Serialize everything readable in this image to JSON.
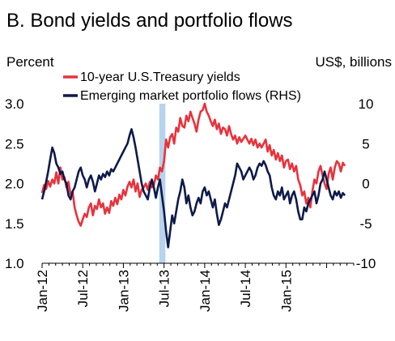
{
  "chart_data": {
    "type": "line",
    "title": "B. Bond yields and portfolio flows",
    "ylabel_left": "Percent",
    "ylabel_right": "US$, billions",
    "x_tick_labels": [
      "Jan-12",
      "Jul-12",
      "Jan-13",
      "Jul-13",
      "Jan-14",
      "Jul-14",
      "Jan-15"
    ],
    "y_left": {
      "range": [
        1.0,
        3.0
      ],
      "ticks": [
        "1.0",
        "1.5",
        "2.0",
        "2.5",
        "3.0"
      ]
    },
    "y_right": {
      "range": [
        -10,
        10
      ],
      "ticks": [
        "-10",
        "-5",
        "0",
        "5",
        "10"
      ]
    },
    "x_range": [
      0,
      46
    ],
    "shaded_period": [
      17.3,
      18.2
    ],
    "grid": false,
    "legend_placement": "top",
    "colors": {
      "yields": "#e8323c",
      "flows": "#0d1a4a",
      "shade": "#b7d3ee"
    },
    "series": [
      {
        "name": "10-year U.S.Treasury yields",
        "axis": "left",
        "points": [
          [
            0,
            1.88
          ],
          [
            0.3,
            1.98
          ],
          [
            0.6,
            1.93
          ],
          [
            0.9,
            2.03
          ],
          [
            1.2,
            1.96
          ],
          [
            1.5,
            2.05
          ],
          [
            1.8,
            2.0
          ],
          [
            2.1,
            2.14
          ],
          [
            2.4,
            2.0
          ],
          [
            2.7,
            2.2
          ],
          [
            3,
            2.05
          ],
          [
            3.3,
            2.08
          ],
          [
            3.6,
            1.95
          ],
          [
            3.9,
            2.02
          ],
          [
            4.2,
            1.86
          ],
          [
            4.5,
            1.9
          ],
          [
            4.8,
            1.7
          ],
          [
            5.1,
            1.6
          ],
          [
            5.4,
            1.52
          ],
          [
            5.7,
            1.47
          ],
          [
            6,
            1.55
          ],
          [
            6.3,
            1.62
          ],
          [
            6.6,
            1.58
          ],
          [
            6.9,
            1.7
          ],
          [
            7.2,
            1.75
          ],
          [
            7.5,
            1.6
          ],
          [
            7.8,
            1.72
          ],
          [
            8.1,
            1.68
          ],
          [
            8.4,
            1.8
          ],
          [
            8.7,
            1.7
          ],
          [
            9,
            1.75
          ],
          [
            9.3,
            1.62
          ],
          [
            9.6,
            1.7
          ],
          [
            9.9,
            1.63
          ],
          [
            10.2,
            1.78
          ],
          [
            10.5,
            1.72
          ],
          [
            10.8,
            1.82
          ],
          [
            11.1,
            1.74
          ],
          [
            11.4,
            1.86
          ],
          [
            11.7,
            1.8
          ],
          [
            12,
            1.92
          ],
          [
            12.3,
            1.85
          ],
          [
            12.6,
            1.96
          ],
          [
            12.9,
            2.02
          ],
          [
            13.2,
            1.95
          ],
          [
            13.5,
            2.05
          ],
          [
            13.8,
            1.9
          ],
          [
            14.1,
            2.0
          ],
          [
            14.4,
            1.83
          ],
          [
            14.7,
            1.92
          ],
          [
            15,
            1.95
          ],
          [
            15.3,
            2.0
          ],
          [
            15.6,
            1.92
          ],
          [
            15.9,
            2.02
          ],
          [
            16.2,
            1.95
          ],
          [
            16.5,
            1.98
          ],
          [
            16.8,
            2.1
          ],
          [
            17.1,
            2.05
          ],
          [
            17.4,
            2.2
          ],
          [
            17.7,
            2.15
          ],
          [
            18,
            2.28
          ],
          [
            18.3,
            2.55
          ],
          [
            18.6,
            2.45
          ],
          [
            18.9,
            2.58
          ],
          [
            19.2,
            2.62
          ],
          [
            19.5,
            2.5
          ],
          [
            19.8,
            2.7
          ],
          [
            20.1,
            2.65
          ],
          [
            20.4,
            2.82
          ],
          [
            20.7,
            2.72
          ],
          [
            21,
            2.7
          ],
          [
            21.3,
            2.85
          ],
          [
            21.6,
            2.78
          ],
          [
            21.9,
            2.9
          ],
          [
            22.2,
            2.82
          ],
          [
            22.5,
            2.75
          ],
          [
            22.8,
            2.65
          ],
          [
            23.1,
            2.8
          ],
          [
            23.4,
            2.9
          ],
          [
            23.7,
            2.92
          ],
          [
            24,
            3.0
          ],
          [
            24.3,
            2.9
          ],
          [
            24.6,
            2.85
          ],
          [
            24.9,
            2.78
          ],
          [
            25.2,
            2.72
          ],
          [
            25.5,
            2.8
          ],
          [
            25.8,
            2.68
          ],
          [
            26.1,
            2.75
          ],
          [
            26.4,
            2.62
          ],
          [
            26.7,
            2.7
          ],
          [
            27,
            2.68
          ],
          [
            27.3,
            2.6
          ],
          [
            27.6,
            2.72
          ],
          [
            27.9,
            2.62
          ],
          [
            28.2,
            2.55
          ],
          [
            28.5,
            2.6
          ],
          [
            28.8,
            2.5
          ],
          [
            29.1,
            2.58
          ],
          [
            29.4,
            2.52
          ],
          [
            29.7,
            2.56
          ],
          [
            30,
            2.6
          ],
          [
            30.3,
            2.55
          ],
          [
            30.6,
            2.5
          ],
          [
            30.9,
            2.56
          ],
          [
            31.2,
            2.48
          ],
          [
            31.5,
            2.55
          ],
          [
            31.8,
            2.45
          ],
          [
            32.1,
            2.5
          ],
          [
            32.4,
            2.45
          ],
          [
            32.7,
            2.5
          ],
          [
            33,
            2.55
          ],
          [
            33.3,
            2.4
          ],
          [
            33.6,
            2.48
          ],
          [
            33.9,
            2.35
          ],
          [
            34.2,
            2.42
          ],
          [
            34.5,
            2.3
          ],
          [
            34.8,
            2.38
          ],
          [
            35.1,
            2.28
          ],
          [
            35.4,
            2.35
          ],
          [
            35.7,
            2.2
          ],
          [
            36,
            2.28
          ],
          [
            36.3,
            2.3
          ],
          [
            36.6,
            2.18
          ],
          [
            36.9,
            2.25
          ],
          [
            37.2,
            2.15
          ],
          [
            37.5,
            2.22
          ],
          [
            37.8,
            2.05
          ],
          [
            38.1,
            1.98
          ],
          [
            38.4,
            1.85
          ],
          [
            38.7,
            1.9
          ],
          [
            39,
            1.75
          ],
          [
            39.3,
            1.82
          ],
          [
            39.6,
            1.7
          ],
          [
            39.9,
            1.9
          ],
          [
            40.2,
            2.05
          ],
          [
            40.5,
            2.0
          ],
          [
            40.8,
            2.15
          ],
          [
            41.1,
            2.22
          ],
          [
            41.4,
            2.1
          ],
          [
            41.7,
            2.0
          ],
          [
            42,
            1.93
          ],
          [
            42.3,
            2.12
          ],
          [
            42.6,
            2.2
          ],
          [
            42.9,
            2.05
          ],
          [
            43.2,
            2.2
          ],
          [
            43.5,
            2.28
          ],
          [
            43.8,
            2.25
          ],
          [
            44.1,
            2.15
          ],
          [
            44.4,
            2.26
          ],
          [
            44.7,
            2.22
          ]
        ]
      },
      {
        "name": "Emerging market portfolio flows (RHS)",
        "axis": "right",
        "points": [
          [
            0,
            -2.0
          ],
          [
            0.3,
            -1.0
          ],
          [
            0.6,
            0.2
          ],
          [
            0.9,
            1.5
          ],
          [
            1.2,
            3.0
          ],
          [
            1.5,
            4.5
          ],
          [
            1.8,
            3.8
          ],
          [
            2.1,
            2.5
          ],
          [
            2.4,
            2.0
          ],
          [
            2.7,
            1.2
          ],
          [
            3,
            1.5
          ],
          [
            3.3,
            0.5
          ],
          [
            3.6,
            0.0
          ],
          [
            3.9,
            -1.5
          ],
          [
            4.2,
            -2.0
          ],
          [
            4.5,
            -1.0
          ],
          [
            4.8,
            -0.5
          ],
          [
            5.1,
            0.5
          ],
          [
            5.4,
            1.5
          ],
          [
            5.7,
            2.0
          ],
          [
            6,
            1.0
          ],
          [
            6.3,
            0.5
          ],
          [
            6.6,
            -0.5
          ],
          [
            6.9,
            0.5
          ],
          [
            7.2,
            1.0
          ],
          [
            7.5,
            0.2
          ],
          [
            7.8,
            -1.0
          ],
          [
            8.1,
            0.0
          ],
          [
            8.4,
            1.0
          ],
          [
            8.7,
            0.5
          ],
          [
            9,
            1.2
          ],
          [
            9.3,
            0.8
          ],
          [
            9.6,
            1.5
          ],
          [
            9.9,
            1.0
          ],
          [
            10.2,
            1.8
          ],
          [
            10.5,
            1.5
          ],
          [
            10.8,
            2.0
          ],
          [
            11.1,
            2.5
          ],
          [
            11.4,
            3.0
          ],
          [
            11.7,
            3.5
          ],
          [
            12,
            4.0
          ],
          [
            12.3,
            4.5
          ],
          [
            12.6,
            5.0
          ],
          [
            12.9,
            6.0
          ],
          [
            13.2,
            6.8
          ],
          [
            13.5,
            5.8
          ],
          [
            13.8,
            4.5
          ],
          [
            14.1,
            3.0
          ],
          [
            14.4,
            1.5
          ],
          [
            14.7,
            0.0
          ],
          [
            15,
            -1.0
          ],
          [
            15.3,
            -1.5
          ],
          [
            15.6,
            -2.0
          ],
          [
            15.9,
            -0.5
          ],
          [
            16.2,
            0.5
          ],
          [
            16.5,
            -0.5
          ],
          [
            16.8,
            -1.8
          ],
          [
            17.1,
            -0.5
          ],
          [
            17.4,
            0.5
          ],
          [
            17.7,
            -1.5
          ],
          [
            18,
            -3.5
          ],
          [
            18.3,
            -6.0
          ],
          [
            18.6,
            -8.0
          ],
          [
            18.9,
            -6.0
          ],
          [
            19.2,
            -4.0
          ],
          [
            19.5,
            -5.0
          ],
          [
            19.8,
            -3.5
          ],
          [
            20.1,
            -2.0
          ],
          [
            20.4,
            -1.0
          ],
          [
            20.7,
            0.5
          ],
          [
            21,
            -0.5
          ],
          [
            21.3,
            -2.5
          ],
          [
            21.6,
            -1.5
          ],
          [
            21.9,
            -3.0
          ],
          [
            22.2,
            -4.0
          ],
          [
            22.5,
            -3.5
          ],
          [
            22.8,
            -2.5
          ],
          [
            23.1,
            -1.8
          ],
          [
            23.4,
            -2.5
          ],
          [
            23.7,
            -1.0
          ],
          [
            24,
            -0.5
          ],
          [
            24.3,
            -1.5
          ],
          [
            24.6,
            -1.0
          ],
          [
            24.9,
            -2.0
          ],
          [
            25.2,
            -3.0
          ],
          [
            25.5,
            -2.0
          ],
          [
            25.8,
            -3.8
          ],
          [
            26.1,
            -5.2
          ],
          [
            26.4,
            -4.5
          ],
          [
            26.7,
            -3.5
          ],
          [
            27,
            -2.5
          ],
          [
            27.3,
            -3.0
          ],
          [
            27.6,
            -2.0
          ],
          [
            27.9,
            -1.0
          ],
          [
            28.2,
            0.0
          ],
          [
            28.5,
            1.0
          ],
          [
            28.8,
            2.5
          ],
          [
            29.1,
            2.0
          ],
          [
            29.4,
            1.5
          ],
          [
            29.7,
            0.5
          ],
          [
            30,
            1.0
          ],
          [
            30.3,
            1.5
          ],
          [
            30.6,
            2.0
          ],
          [
            30.9,
            1.5
          ],
          [
            31.2,
            0.5
          ],
          [
            31.5,
            1.0
          ],
          [
            31.8,
            2.0
          ],
          [
            32.1,
            2.5
          ],
          [
            32.4,
            2.2
          ],
          [
            32.7,
            2.8
          ],
          [
            33,
            2.3
          ],
          [
            33.3,
            1.5
          ],
          [
            33.6,
            1.0
          ],
          [
            33.9,
            -0.5
          ],
          [
            34.2,
            -1.5
          ],
          [
            34.5,
            -2.0
          ],
          [
            34.8,
            -1.0
          ],
          [
            35.1,
            -1.5
          ],
          [
            35.4,
            -0.5
          ],
          [
            35.7,
            -2.0
          ],
          [
            36,
            -1.5
          ],
          [
            36.3,
            -1.0
          ],
          [
            36.6,
            -2.5
          ],
          [
            36.9,
            -1.5
          ],
          [
            37.2,
            -1.0
          ],
          [
            37.5,
            -2.0
          ],
          [
            37.8,
            -3.5
          ],
          [
            38.1,
            -4.5
          ],
          [
            38.4,
            -4.5
          ],
          [
            38.7,
            -3.0
          ],
          [
            39,
            -3.5
          ],
          [
            39.3,
            -2.5
          ],
          [
            39.6,
            -2.0
          ],
          [
            39.9,
            -1.5
          ],
          [
            40.2,
            -1.0
          ],
          [
            40.5,
            -2.5
          ],
          [
            40.8,
            -1.5
          ],
          [
            41.1,
            0.0
          ],
          [
            41.4,
            0.5
          ],
          [
            41.7,
            1.5
          ],
          [
            42,
            0.5
          ],
          [
            42.3,
            -0.5
          ],
          [
            42.6,
            -1.5
          ],
          [
            42.9,
            -2.0
          ],
          [
            43.2,
            -1.0
          ],
          [
            43.5,
            -1.5
          ],
          [
            43.8,
            -1.0
          ],
          [
            44.1,
            -1.8
          ],
          [
            44.4,
            -1.2
          ],
          [
            44.7,
            -1.5
          ]
        ]
      }
    ]
  }
}
